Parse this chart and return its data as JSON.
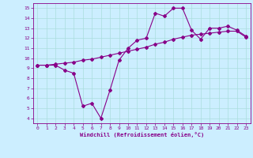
{
  "x": [
    0,
    1,
    2,
    3,
    4,
    5,
    6,
    7,
    8,
    9,
    10,
    11,
    12,
    13,
    14,
    15,
    16,
    17,
    18,
    19,
    20,
    21,
    22,
    23
  ],
  "line1": [
    9.3,
    9.3,
    9.3,
    8.8,
    8.5,
    5.2,
    5.5,
    4.0,
    6.8,
    9.8,
    11.0,
    11.8,
    12.0,
    14.5,
    14.2,
    15.0,
    15.0,
    12.8,
    11.9,
    13.0,
    13.0,
    13.2,
    12.8,
    12.2
  ],
  "line2": [
    9.3,
    9.3,
    9.4,
    9.5,
    9.6,
    9.8,
    9.9,
    10.1,
    10.3,
    10.5,
    10.7,
    10.9,
    11.1,
    11.4,
    11.6,
    11.9,
    12.1,
    12.3,
    12.4,
    12.5,
    12.6,
    12.7,
    12.7,
    12.1
  ],
  "color": "#880088",
  "bg_color": "#cceeff",
  "grid_color": "#aadddd",
  "xlim": [
    -0.5,
    23.5
  ],
  "ylim": [
    3.5,
    15.5
  ],
  "yticks": [
    4,
    5,
    6,
    7,
    8,
    9,
    10,
    11,
    12,
    13,
    14,
    15
  ],
  "xticks": [
    0,
    1,
    2,
    3,
    4,
    5,
    6,
    7,
    8,
    9,
    10,
    11,
    12,
    13,
    14,
    15,
    16,
    17,
    18,
    19,
    20,
    21,
    22,
    23
  ],
  "xlabel": "Windchill (Refroidissement éolien,°C)",
  "marker": "D",
  "markersize": 2,
  "linewidth": 0.8,
  "tick_fontsize": 4.5,
  "xlabel_fontsize": 5.0
}
